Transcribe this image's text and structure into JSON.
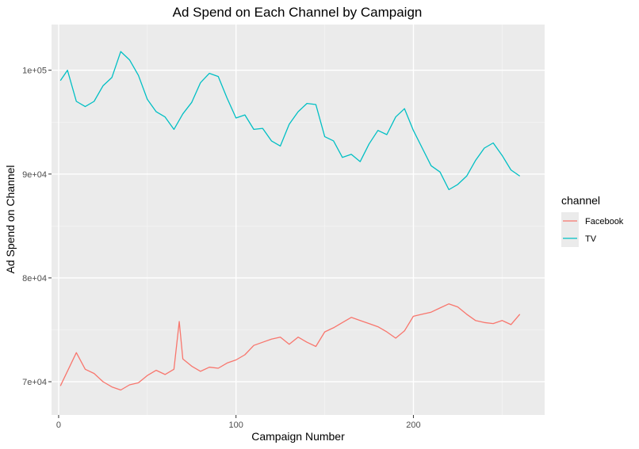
{
  "chart_data": {
    "type": "line",
    "title": "Ad Spend on Each Channel by Campaign",
    "xlabel": "Campaign Number",
    "ylabel": "Ad Spend on Channel",
    "xlim": [
      -4,
      274
    ],
    "ylim": [
      66800,
      104400
    ],
    "x_ticks": [
      0,
      100,
      200
    ],
    "x_tick_labels": [
      "0",
      "100",
      "200"
    ],
    "y_ticks": [
      70000,
      80000,
      90000,
      100000
    ],
    "y_tick_labels": [
      "7e+04",
      "8e+04",
      "9e+04",
      "1e+05"
    ],
    "grid": true,
    "background": "#ebebeb",
    "legend_title": "channel",
    "legend_position": "right",
    "series": [
      {
        "name": "Facebook",
        "color": "#f8766d",
        "x": [
          1,
          10,
          15,
          20,
          25,
          30,
          35,
          40,
          45,
          50,
          55,
          60,
          65,
          68,
          70,
          75,
          80,
          85,
          90,
          95,
          100,
          105,
          110,
          115,
          120,
          125,
          130,
          135,
          140,
          145,
          150,
          155,
          160,
          165,
          170,
          175,
          180,
          185,
          190,
          195,
          200,
          205,
          210,
          215,
          220,
          225,
          230,
          235,
          240,
          245,
          250,
          255,
          260
        ],
        "values": [
          69600,
          72800,
          71200,
          70800,
          70000,
          69500,
          69200,
          69700,
          69900,
          70600,
          71100,
          70700,
          71200,
          75800,
          72200,
          71500,
          71000,
          71400,
          71300,
          71800,
          72100,
          72600,
          73500,
          73800,
          74100,
          74300,
          73600,
          74300,
          73800,
          73400,
          74800,
          75200,
          75700,
          76200,
          75900,
          75600,
          75300,
          74800,
          74200,
          74900,
          76300,
          76500,
          76700,
          77100,
          77500,
          77200,
          76500,
          75900,
          75700,
          75600,
          75900,
          75500,
          76500
        ]
      },
      {
        "name": "TV",
        "color": "#00bfc4",
        "x": [
          1,
          5,
          10,
          15,
          20,
          25,
          30,
          35,
          40,
          45,
          50,
          55,
          60,
          65,
          70,
          75,
          80,
          85,
          90,
          95,
          100,
          105,
          110,
          115,
          120,
          125,
          130,
          135,
          140,
          145,
          150,
          155,
          160,
          165,
          170,
          175,
          180,
          185,
          190,
          195,
          200,
          205,
          210,
          215,
          220,
          225,
          230,
          235,
          240,
          245,
          250,
          255,
          260
        ],
        "values": [
          99000,
          100000,
          97000,
          96500,
          97000,
          98500,
          99300,
          101800,
          101000,
          99500,
          97200,
          96000,
          95500,
          94300,
          95800,
          96900,
          98800,
          99700,
          99400,
          97300,
          95400,
          95700,
          94300,
          94400,
          93200,
          92700,
          94800,
          96000,
          96800,
          96700,
          93600,
          93200,
          91600,
          91900,
          91200,
          92900,
          94200,
          93800,
          95500,
          96300,
          94200,
          92500,
          90800,
          90200,
          88500,
          89000,
          89800,
          91300,
          92500,
          93000,
          91800,
          90400,
          89800
        ]
      }
    ]
  }
}
